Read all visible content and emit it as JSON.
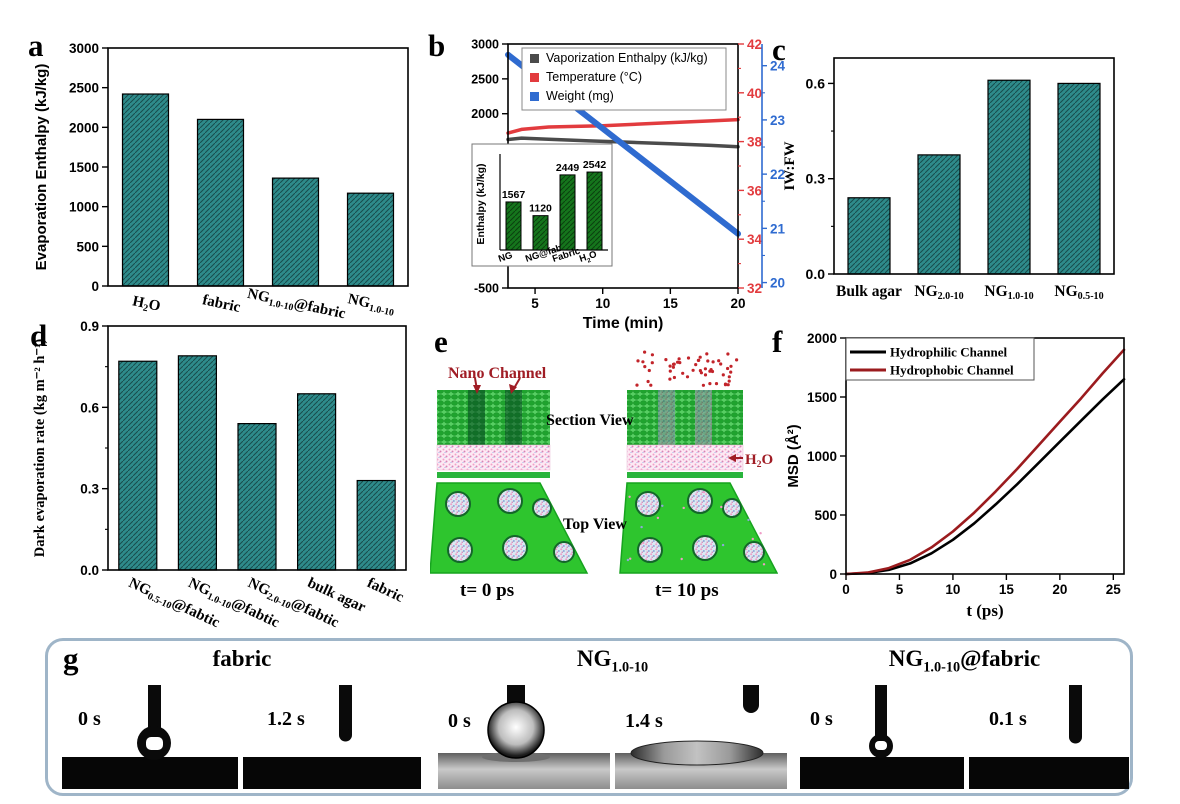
{
  "colors": {
    "bar_teal": "#2e8b8b",
    "inset_green": "#15751c",
    "enthalpy_gray": "#4b4b4b",
    "temperature_red": "#e23b3e",
    "weight_blue": "#2f6bd0",
    "hydrophilic_black": "#000000",
    "hydrophobic_red": "#9b1b1e",
    "annotation_dark_red": "#a01d25",
    "sim_green": "#2ec52e",
    "panel_g_border": "#9fb5c8"
  },
  "panels": {
    "a": {
      "letter": "a"
    },
    "b": {
      "letter": "b"
    },
    "c": {
      "letter": "c"
    },
    "d": {
      "letter": "d"
    },
    "e": {
      "letter": "e",
      "labels": {
        "nano_channel": "Nano Channel",
        "section_view": "Section View",
        "top_view": "Top View",
        "water": "H{2}O",
        "t0": "t= 0 ps",
        "t1": "t= 10 ps"
      }
    },
    "f": {
      "letter": "f"
    },
    "g": {
      "letter": "g",
      "sections": [
        {
          "title": "fabric",
          "times": [
            "0 s",
            "1.2 s"
          ]
        },
        {
          "title": "NG{1.0-10}",
          "times": [
            "0 s",
            "1.4 s"
          ]
        },
        {
          "title": "NG{1.0-10}@fabric",
          "times": [
            "0 s",
            "0.1 s"
          ]
        }
      ]
    }
  },
  "chart_data": [
    {
      "panel": "a",
      "type": "bar",
      "ylabel": "Evaporation Enthalpy (kJ/kg)",
      "ylim": [
        0,
        3000
      ],
      "yticks": [
        0,
        500,
        1000,
        1500,
        2000,
        2500,
        3000
      ],
      "categories": [
        "H{2}O",
        "fabric",
        "NG{1.0-10}@fabric",
        "NG{1.0-10}"
      ],
      "values": [
        2420,
        2100,
        1360,
        1170
      ],
      "bar_color": "#2e8b8b"
    },
    {
      "panel": "b",
      "type": "line",
      "xlabel": "Time (min)",
      "xlim": [
        3,
        20
      ],
      "xticks": [
        5,
        10,
        15,
        20
      ],
      "axes": {
        "left": {
          "lim": [
            -500,
            3000
          ],
          "ticks": [
            -500,
            0,
            500,
            1000,
            1500,
            2000,
            2500,
            3000
          ],
          "color": "#000000"
        },
        "right_red": {
          "lim": [
            32,
            42
          ],
          "ticks": [
            32,
            34,
            36,
            38,
            40,
            42
          ],
          "color": "#e23b3e"
        },
        "right_blue": {
          "lim": [
            19.9,
            24.4
          ],
          "ticks": [
            20,
            21,
            22,
            23,
            24
          ],
          "color": "#2f6bd0"
        }
      },
      "series": [
        {
          "name": "Vaporization Enthalpy (kJ/kg)",
          "axis": "left",
          "color": "#4b4b4b",
          "points": [
            [
              3,
              1630
            ],
            [
              4,
              1650
            ],
            [
              6,
              1635
            ],
            [
              9,
              1610
            ],
            [
              12,
              1590
            ],
            [
              15,
              1570
            ],
            [
              18,
              1545
            ],
            [
              20,
              1525
            ]
          ]
        },
        {
          "name": "Temperature (°C)",
          "axis": "right_red",
          "color": "#e23b3e",
          "points": [
            [
              3,
              38.35
            ],
            [
              4,
              38.5
            ],
            [
              6,
              38.6
            ],
            [
              10,
              38.65
            ],
            [
              14,
              38.75
            ],
            [
              18,
              38.85
            ],
            [
              20,
              38.9
            ]
          ]
        },
        {
          "name": "Weight (mg)",
          "axis": "right_blue",
          "color": "#2f6bd0",
          "points": [
            [
              3,
              24.2
            ],
            [
              20,
              20.9
            ]
          ]
        }
      ],
      "inset": {
        "type": "bar",
        "ylabel": "Enthalpy (kJ/kg)",
        "categories": [
          "NG",
          "NG@fabric",
          "Fabric",
          "H{2}O"
        ],
        "values": [
          1567,
          1120,
          2449,
          2542
        ],
        "ylim": [
          0,
          3000
        ],
        "bar_color": "#15751c"
      }
    },
    {
      "panel": "c",
      "type": "bar",
      "ylabel": "IW:FW",
      "ylim": [
        0,
        0.68
      ],
      "yticks": [
        0,
        0.3,
        0.6
      ],
      "categories": [
        "Bulk agar",
        "NG{2.0-10}",
        "NG{1.0-10}",
        "NG{0.5-10}"
      ],
      "values": [
        0.24,
        0.375,
        0.61,
        0.6
      ],
      "bar_color": "#2e8b8b"
    },
    {
      "panel": "d",
      "type": "bar",
      "ylabel": "Dark evaporation rate (kg m⁻² h⁻¹)",
      "ylim": [
        0,
        0.9
      ],
      "yticks": [
        0,
        0.3,
        0.6,
        0.9
      ],
      "categories": [
        "NG{0.5-10}@fabtic",
        "NG{1.0-10}@fabtic",
        "NG{2.0-10}@fabtic",
        "bulk agar",
        "fabric"
      ],
      "values": [
        0.77,
        0.79,
        0.54,
        0.65,
        0.33
      ],
      "bar_color": "#2e8b8b"
    },
    {
      "panel": "f",
      "type": "line",
      "xlabel": "t (ps)",
      "ylabel": "MSD (Å²)",
      "xlim": [
        0,
        26
      ],
      "xticks": [
        0,
        5,
        10,
        15,
        20,
        25
      ],
      "ylim": [
        0,
        2000
      ],
      "yticks": [
        0,
        500,
        1000,
        1500,
        2000
      ],
      "legend_position": "top-left",
      "series": [
        {
          "name": "Hydrophilic Channel",
          "color": "#000000",
          "points": [
            [
              0,
              0
            ],
            [
              2,
              8
            ],
            [
              4,
              35
            ],
            [
              6,
              90
            ],
            [
              8,
              175
            ],
            [
              10,
              290
            ],
            [
              12,
              430
            ],
            [
              14,
              590
            ],
            [
              16,
              760
            ],
            [
              18,
              940
            ],
            [
              20,
              1120
            ],
            [
              22,
              1300
            ],
            [
              24,
              1480
            ],
            [
              26,
              1650
            ]
          ]
        },
        {
          "name": "Hydrophobic Channel",
          "color": "#9b1b1e",
          "points": [
            [
              0,
              0
            ],
            [
              2,
              12
            ],
            [
              4,
              50
            ],
            [
              6,
              120
            ],
            [
              8,
              225
            ],
            [
              10,
              360
            ],
            [
              12,
              520
            ],
            [
              14,
              700
            ],
            [
              16,
              890
            ],
            [
              18,
              1090
            ],
            [
              20,
              1290
            ],
            [
              22,
              1490
            ],
            [
              24,
              1700
            ],
            [
              26,
              1900
            ]
          ]
        }
      ]
    }
  ]
}
